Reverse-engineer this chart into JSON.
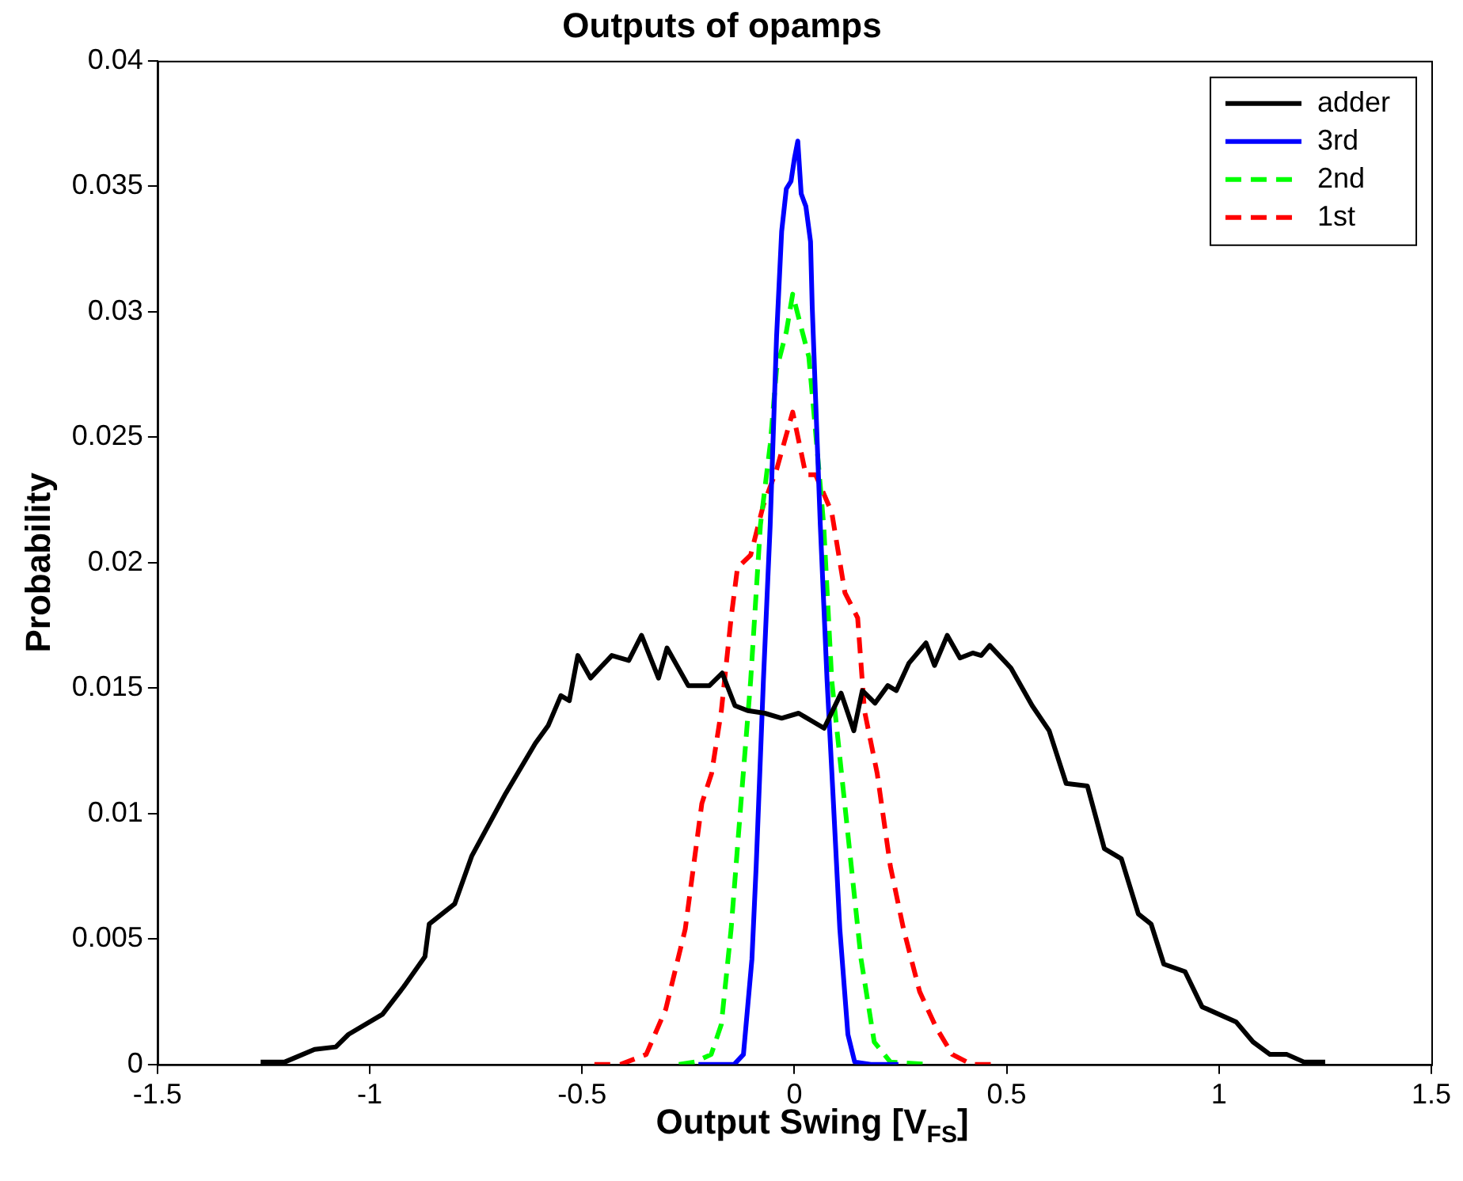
{
  "chart_data": {
    "type": "line",
    "title": "Outputs of opamps",
    "xlabel": "Output Swing [V$_{FS}$]",
    "ylabel": "Probability",
    "xlim": [
      -1.5,
      1.5
    ],
    "xticks": [
      -1.5,
      -1,
      -0.5,
      0,
      0.5,
      1,
      1.5
    ],
    "ylim": [
      0,
      0.04
    ],
    "yticks": [
      0,
      0.005,
      0.01,
      0.015,
      0.02,
      0.025,
      0.03,
      0.035,
      0.04
    ],
    "grid": false,
    "legend": "top right",
    "marker": "none",
    "series": [
      {
        "name": "adder",
        "color": "#000000",
        "line_style": "solid",
        "x": [
          -1.257,
          -1.2,
          -1.13,
          -1.08,
          -1.05,
          -0.97,
          -0.92,
          -0.87,
          -0.86,
          -0.8,
          -0.76,
          -0.68,
          -0.61,
          -0.58,
          -0.55,
          -0.53,
          -0.51,
          -0.48,
          -0.43,
          -0.39,
          -0.36,
          -0.32,
          -0.3,
          -0.25,
          -0.2,
          -0.17,
          -0.14,
          -0.11,
          -0.07,
          -0.03,
          0.01,
          0.04,
          0.07,
          0.11,
          0.14,
          0.16,
          0.19,
          0.22,
          0.24,
          0.27,
          0.31,
          0.33,
          0.36,
          0.39,
          0.42,
          0.44,
          0.46,
          0.51,
          0.56,
          0.6,
          0.64,
          0.69,
          0.73,
          0.77,
          0.81,
          0.84,
          0.87,
          0.92,
          0.96,
          1.04,
          1.08,
          1.12,
          1.16,
          1.2,
          1.25
        ],
        "values": [
          0.0001,
          0.0001,
          0.0006,
          0.0007,
          0.0012,
          0.002,
          0.0031,
          0.0043,
          0.0056,
          0.0064,
          0.0083,
          0.0108,
          0.0128,
          0.0135,
          0.0147,
          0.0145,
          0.0163,
          0.0154,
          0.0163,
          0.0161,
          0.0171,
          0.0154,
          0.0166,
          0.0151,
          0.0151,
          0.0156,
          0.0143,
          0.0141,
          0.014,
          0.0138,
          0.014,
          0.0137,
          0.0134,
          0.0148,
          0.0133,
          0.0149,
          0.0144,
          0.0151,
          0.0149,
          0.016,
          0.0168,
          0.0159,
          0.0171,
          0.0162,
          0.0164,
          0.0163,
          0.0167,
          0.0158,
          0.0143,
          0.0133,
          0.0112,
          0.0111,
          0.0086,
          0.0082,
          0.006,
          0.0056,
          0.004,
          0.0037,
          0.0023,
          0.0017,
          0.0009,
          0.0004,
          0.0004,
          0.0001,
          0.0001
        ]
      },
      {
        "name": "3rd",
        "color": "#0000ff",
        "line_style": "solid",
        "x": [
          -0.226,
          -0.142,
          -0.12,
          -0.1,
          -0.09,
          -0.073,
          -0.057,
          -0.042,
          -0.03,
          -0.019,
          -0.008,
          0,
          0.008,
          0.016,
          0.027,
          0.038,
          0.042,
          0.05,
          0.061,
          0.077,
          0.092,
          0.107,
          0.126,
          0.142,
          0.18,
          0.245
        ],
        "values": [
          0,
          0,
          0.0004,
          0.0042,
          0.0079,
          0.0153,
          0.0215,
          0.029,
          0.0332,
          0.0349,
          0.0352,
          0.0361,
          0.0368,
          0.0347,
          0.0342,
          0.0328,
          0.0302,
          0.0265,
          0.0215,
          0.0153,
          0.0104,
          0.0054,
          0.0012,
          0.0001,
          0,
          0
        ]
      },
      {
        "name": "2nd",
        "color": "#00ff00",
        "line_style": "dashed",
        "x": [
          -0.272,
          -0.234,
          -0.196,
          -0.172,
          -0.149,
          -0.126,
          -0.103,
          -0.08,
          -0.057,
          -0.042,
          -0.019,
          -0.004,
          0.011,
          0.034,
          0.05,
          0.069,
          0.088,
          0.111,
          0.134,
          0.157,
          0.188,
          0.226,
          0.32
        ],
        "values": [
          0,
          0.0001,
          0.0004,
          0.0016,
          0.0054,
          0.0104,
          0.0153,
          0.0215,
          0.0247,
          0.0277,
          0.0292,
          0.0307,
          0.0297,
          0.0282,
          0.0252,
          0.0215,
          0.0153,
          0.0116,
          0.0079,
          0.0042,
          0.0009,
          0.0001,
          0
        ]
      },
      {
        "name": "1st",
        "color": "#ff0000",
        "line_style": "dashed",
        "x": [
          -0.471,
          -0.41,
          -0.349,
          -0.303,
          -0.257,
          -0.218,
          -0.195,
          -0.172,
          -0.149,
          -0.134,
          -0.103,
          -0.073,
          -0.042,
          -0.004,
          0.027,
          0.05,
          0.088,
          0.119,
          0.149,
          0.165,
          0.195,
          0.226,
          0.257,
          0.295,
          0.333,
          0.372,
          0.418,
          0.479
        ],
        "values": [
          0,
          0,
          0.0004,
          0.0022,
          0.0054,
          0.0104,
          0.0116,
          0.0141,
          0.0178,
          0.0198,
          0.0203,
          0.0223,
          0.0237,
          0.026,
          0.0235,
          0.0235,
          0.022,
          0.0188,
          0.0178,
          0.0141,
          0.0116,
          0.0079,
          0.0054,
          0.0029,
          0.0015,
          0.0004,
          0,
          0
        ]
      }
    ]
  }
}
